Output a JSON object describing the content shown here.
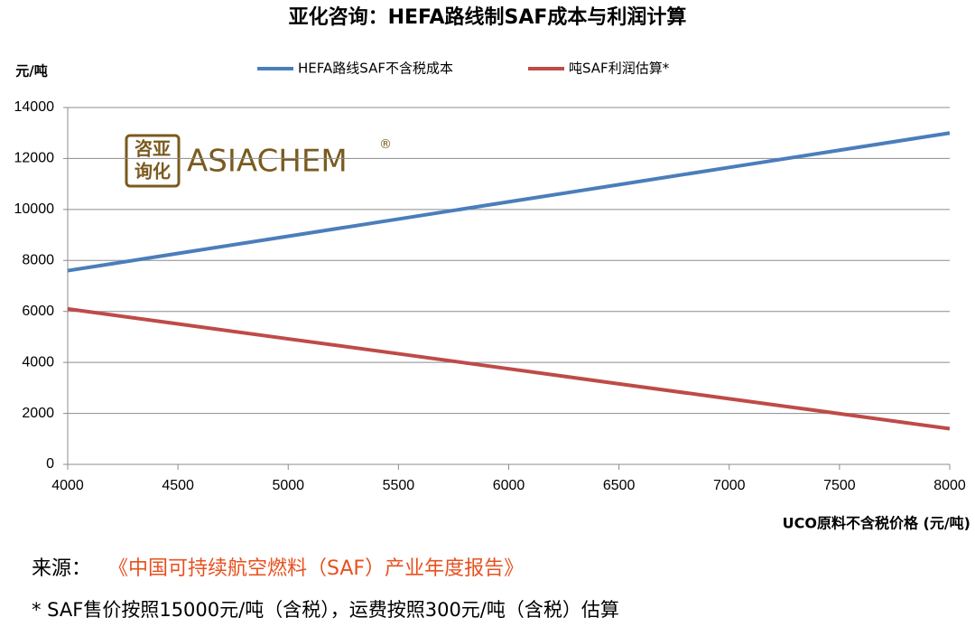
{
  "chart_data": {
    "type": "line",
    "title": "亚化咨询：HEFA路线制SAF成本与利润计算",
    "y_unit": "元/吨",
    "x_label": "UCO原料不含税价格 (元/吨)",
    "x": [
      4000,
      4500,
      5000,
      5500,
      6000,
      6500,
      7000,
      7500,
      8000
    ],
    "xlim": [
      4000,
      8000
    ],
    "xticks": [
      4000,
      4500,
      5000,
      5500,
      6000,
      6500,
      7000,
      7500,
      8000
    ],
    "ylim": [
      0,
      14000
    ],
    "yticks": [
      0,
      2000,
      4000,
      6000,
      8000,
      10000,
      12000,
      14000
    ],
    "grid": true,
    "legend": "top",
    "series": [
      {
        "name": "HEFA路线SAF不含税成本",
        "color": "#4a7ebb",
        "values": [
          7600,
          8275,
          8950,
          9625,
          10300,
          10975,
          11650,
          12325,
          13000
        ]
      },
      {
        "name": "吨SAF利润估算*",
        "color": "#be4b48",
        "values": [
          6100,
          5510,
          4925,
          4340,
          3750,
          3160,
          2575,
          1990,
          1400
        ]
      }
    ]
  },
  "logo": {
    "mark_top": "咨亚",
    "mark_bottom": "询化",
    "name": "ASIACHEM",
    "reg": "®"
  },
  "source": {
    "label": "来源：",
    "title": "《中国可持续航空燃料（SAF）产业年度报告》"
  },
  "footnote": "* SAF售价按照15000元/吨（含税），运费按照300元/吨（含税）估算"
}
